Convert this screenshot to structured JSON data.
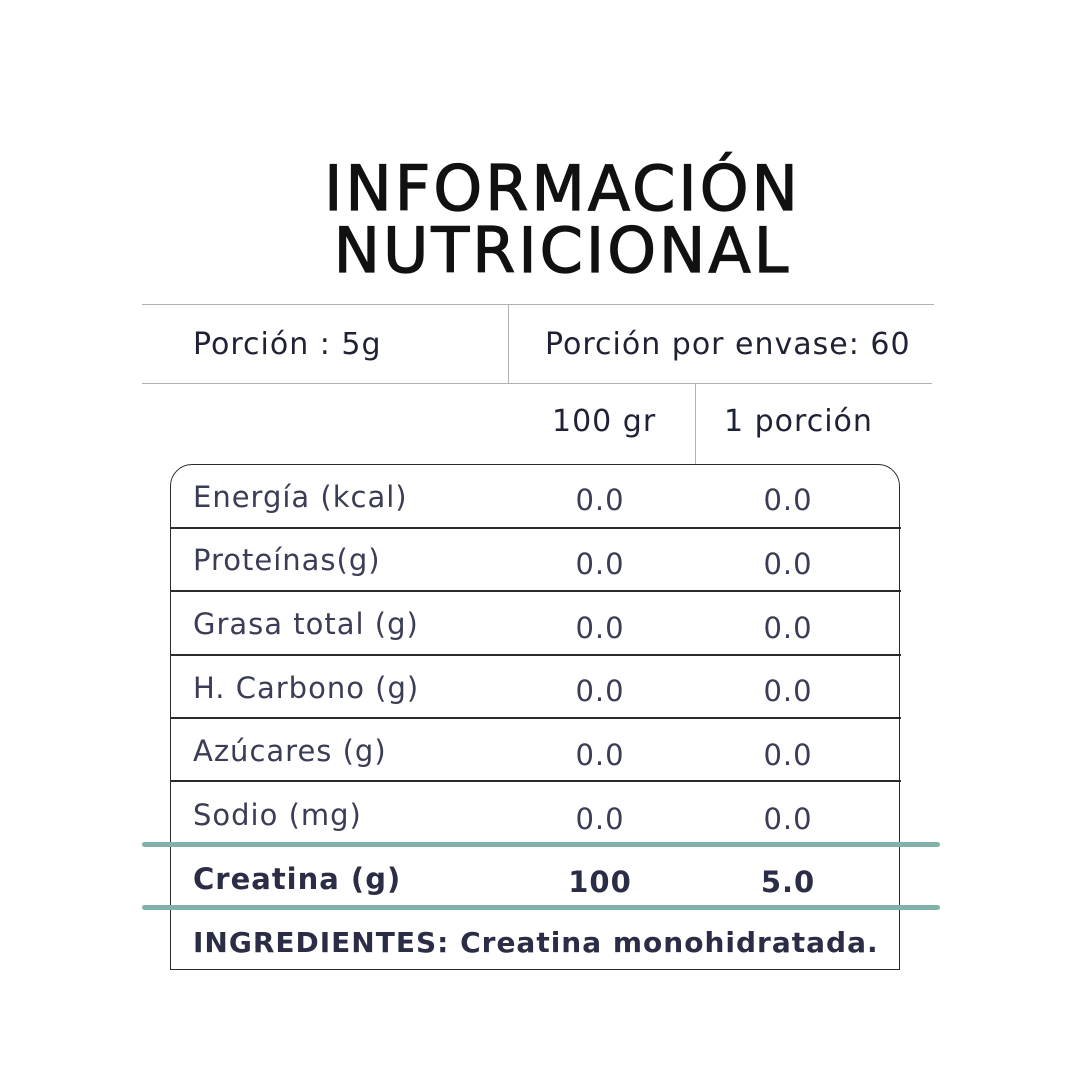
{
  "title_line1": "INFORMACIÓN",
  "title_line2": "NUTRICIONAL",
  "serving": {
    "portion": "Porción : 5g",
    "per_container": "Porción por envase: 60"
  },
  "columns": {
    "per100": "100 gr",
    "per_portion": "1 porción"
  },
  "rows": [
    {
      "label": "Energía (kcal)",
      "per100": "0.0",
      "per_portion": "0.0"
    },
    {
      "label": "Proteínas(g)",
      "per100": "0.0",
      "per_portion": "0.0"
    },
    {
      "label": "Grasa total (g)",
      "per100": "0.0",
      "per_portion": "0.0"
    },
    {
      "label": "H. Carbono (g)",
      "per100": "0.0",
      "per_portion": "0.0"
    },
    {
      "label": "Azúcares (g)",
      "per100": "0.0",
      "per_portion": "0.0"
    },
    {
      "label": "Sodio (mg)",
      "per100": "0.0",
      "per_portion": "0.0"
    },
    {
      "label": "Creatina (g)",
      "per100": "100",
      "per_portion": "5.0"
    }
  ],
  "ingredients": "INGREDIENTES: Creatina monohidratada.",
  "colors": {
    "accent_teal": "#7fb2a8",
    "text_dark": "#1f2235"
  }
}
